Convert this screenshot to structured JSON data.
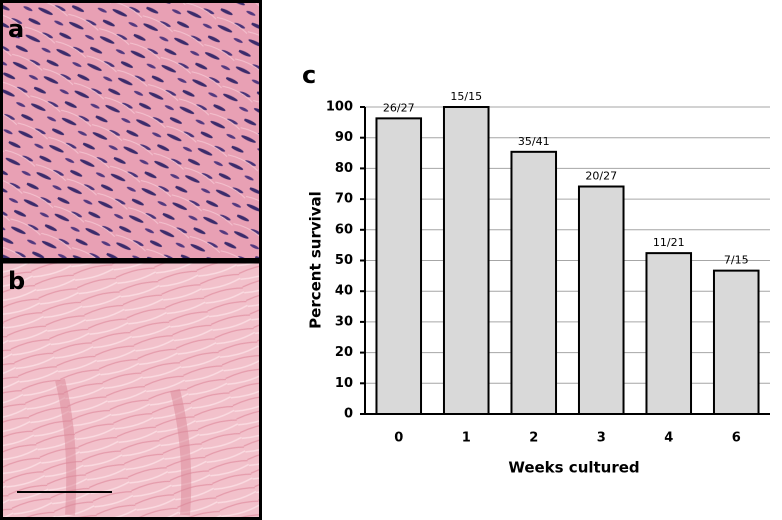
{
  "panel_labels": [
    "a",
    "b",
    "c"
  ],
  "chart_data": {
    "type": "bar",
    "categories": [
      "0",
      "1",
      "2",
      "3",
      "4",
      "6"
    ],
    "values": [
      96.3,
      100,
      85.4,
      74.1,
      52.4,
      46.7
    ],
    "value_labels": [
      "26/27",
      "15/15",
      "35/41",
      "20/27",
      "11/21",
      "7/15"
    ],
    "color": "#d9d9d9",
    "x_label": "Weeks cultured",
    "y_label": "Percent survival",
    "ylim": [
      0,
      100
    ],
    "yticks": [
      0,
      10,
      20,
      30,
      40,
      50,
      60,
      70,
      80,
      90,
      100
    ],
    "grid": true
  }
}
